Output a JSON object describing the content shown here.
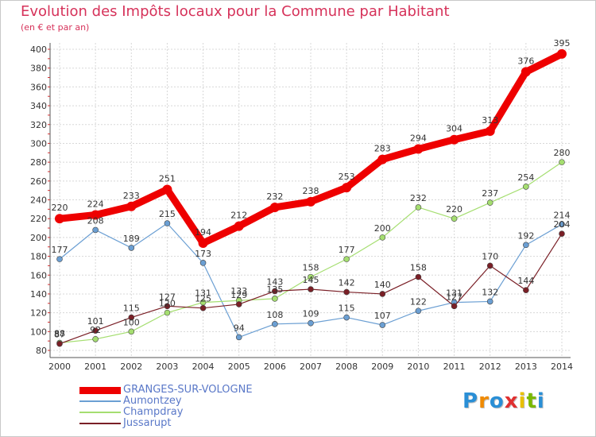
{
  "header": {
    "title": "Evolution des Impôts locaux pour la Commune par Habitant",
    "subtitle": "(en € et par an)"
  },
  "chart_data": {
    "type": "line",
    "title": "Evolution des Impôts locaux pour la Commune par Habitant",
    "subtitle": "(en € et par an)",
    "xlabel": "",
    "ylabel": "",
    "ylim": [
      80,
      400
    ],
    "ytick_step": 20,
    "grid": true,
    "x": [
      "2000",
      "2001",
      "2002",
      "2003",
      "2004",
      "2005",
      "2006",
      "2007",
      "2008",
      "2009",
      "2010",
      "2011",
      "2012",
      "2013",
      "2014"
    ],
    "series": [
      {
        "name": "GRANGES-SUR-VOLOGNE",
        "color": "#ee0000",
        "width": 9,
        "marker": 6,
        "values": [
          220,
          224,
          233,
          251,
          194,
          212,
          232,
          238,
          253,
          283,
          294,
          304,
          313,
          376,
          395
        ]
      },
      {
        "name": "Aumontzey",
        "color": "#6b9fd3",
        "width": 1.2,
        "marker": 3.5,
        "values": [
          177,
          208,
          189,
          215,
          173,
          94,
          108,
          109,
          115,
          107,
          122,
          131,
          132,
          192,
          214
        ]
      },
      {
        "name": "Champdray",
        "color": "#a5de70",
        "width": 1.2,
        "marker": 3.5,
        "values": [
          88,
          92,
          100,
          120,
          131,
          133,
          135,
          158,
          177,
          200,
          232,
          220,
          237,
          254,
          280
        ]
      },
      {
        "name": "Jussarupt",
        "color": "#7a1f26",
        "width": 1.2,
        "marker": 3.5,
        "values": [
          87,
          101,
          115,
          127,
          125,
          129,
          143,
          145,
          142,
          140,
          158,
          127,
          170,
          144,
          204
        ]
      }
    ]
  },
  "legend": {
    "items": [
      {
        "label": "GRANGES-SUR-VOLOGNE",
        "color": "#ee0000"
      },
      {
        "label": "Aumontzey",
        "color": "#6b9fd3"
      },
      {
        "label": "Champdray",
        "color": "#a5de70"
      },
      {
        "label": "Jussarupt",
        "color": "#7a1f26"
      }
    ]
  },
  "logo": {
    "letters": [
      "P",
      "r",
      "o",
      "x",
      "i",
      "t",
      "i"
    ],
    "colors": [
      "#2a8fd6",
      "#f08a00",
      "#2a8fd6",
      "#e03030",
      "#e8c000",
      "#7ab800",
      "#2a8fd6"
    ]
  }
}
